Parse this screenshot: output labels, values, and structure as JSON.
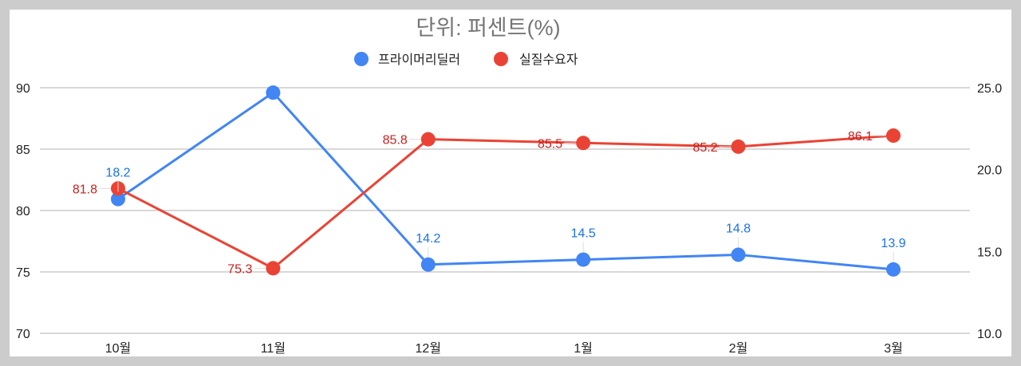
{
  "chart_data": {
    "type": "line",
    "title": "단위: 퍼센트(%)",
    "categories": [
      "10월",
      "11월",
      "12월",
      "1월",
      "2월",
      "3월"
    ],
    "series": [
      {
        "name": "프라이머리딜러",
        "axis": "right",
        "color": "#4285f4",
        "label_color": "#1a73e8",
        "values": [
          18.2,
          24.7,
          14.2,
          14.5,
          14.8,
          13.9
        ],
        "labels_shown": [
          "18.2",
          "",
          "14.2",
          "14.5",
          "14.8",
          "13.9"
        ]
      },
      {
        "name": "실질수요자",
        "axis": "left",
        "color": "#ea4335",
        "label_color": "#c5221f",
        "values": [
          81.8,
          75.3,
          85.8,
          85.5,
          85.2,
          86.1
        ],
        "labels_shown": [
          "81.8",
          "75.3",
          "85.8",
          "85.5",
          "85.2",
          "86.1"
        ]
      }
    ],
    "left_axis": {
      "ticks": [
        "90",
        "85",
        "80",
        "75",
        "70"
      ],
      "ylim": [
        70,
        90
      ]
    },
    "right_axis": {
      "ticks": [
        "25.0",
        "20.0",
        "15.0",
        "10.0"
      ],
      "ylim": [
        10,
        25
      ]
    },
    "xlabel": "",
    "ylabel": "",
    "grid": true,
    "legend_position": "top"
  }
}
